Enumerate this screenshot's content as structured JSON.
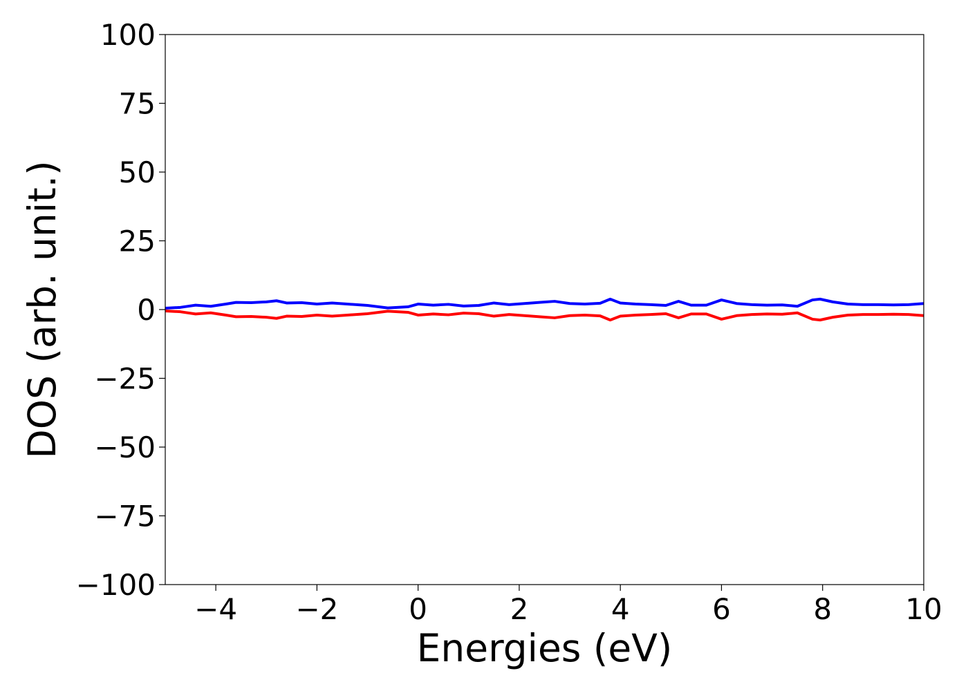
{
  "chart_data": {
    "type": "line",
    "title": "",
    "xlabel": "Energies (eV)",
    "ylabel": "DOS (arb. unit.)",
    "xlim": [
      -5,
      10
    ],
    "ylim": [
      -100,
      100
    ],
    "grid": false,
    "x_ticks": [
      -4,
      -2,
      0,
      2,
      4,
      6,
      8,
      10
    ],
    "x_tick_labels": [
      "−4",
      "−2",
      "0",
      "2",
      "4",
      "6",
      "8",
      "10"
    ],
    "y_ticks": [
      100,
      75,
      50,
      25,
      0,
      -25,
      -50,
      -75,
      -100
    ],
    "y_tick_labels": [
      "100",
      "75",
      "50",
      "25",
      "0",
      "−25",
      "−50",
      "−75",
      "−100"
    ],
    "series": [
      {
        "color": "#0000ff",
        "x": [
          -5,
          -4.7,
          -4.4,
          -4.1,
          -3.8,
          -3.6,
          -3.3,
          -3.0,
          -2.8,
          -2.6,
          -2.3,
          -2.0,
          -1.7,
          -1.4,
          -1.0,
          -0.6,
          -0.2,
          0.0,
          0.3,
          0.6,
          0.9,
          1.2,
          1.5,
          1.8,
          2.1,
          2.4,
          2.7,
          3.0,
          3.3,
          3.6,
          3.8,
          4.0,
          4.3,
          4.6,
          4.9,
          5.15,
          5.4,
          5.7,
          6.0,
          6.3,
          6.6,
          6.9,
          7.2,
          7.5,
          7.8,
          7.95,
          8.2,
          8.5,
          8.8,
          9.1,
          9.4,
          9.7,
          10.0
        ],
        "y": [
          0.5,
          0.8,
          1.6,
          1.2,
          2.0,
          2.6,
          2.5,
          2.8,
          3.2,
          2.4,
          2.5,
          2.0,
          2.4,
          2.0,
          1.5,
          0.6,
          1.0,
          2.0,
          1.6,
          1.9,
          1.3,
          1.5,
          2.4,
          1.8,
          2.2,
          2.6,
          3.0,
          2.2,
          2.0,
          2.3,
          3.8,
          2.4,
          2.0,
          1.8,
          1.5,
          3.0,
          1.6,
          1.6,
          3.5,
          2.2,
          1.8,
          1.6,
          1.7,
          1.2,
          3.5,
          3.8,
          2.8,
          2.0,
          1.8,
          1.8,
          1.7,
          1.8,
          2.2
        ]
      },
      {
        "color": "#ff0000",
        "x": [
          -5,
          -4.7,
          -4.4,
          -4.1,
          -3.8,
          -3.6,
          -3.3,
          -3.0,
          -2.8,
          -2.6,
          -2.3,
          -2.0,
          -1.7,
          -1.4,
          -1.0,
          -0.6,
          -0.2,
          0.0,
          0.3,
          0.6,
          0.9,
          1.2,
          1.5,
          1.8,
          2.1,
          2.4,
          2.7,
          3.0,
          3.3,
          3.6,
          3.8,
          4.0,
          4.3,
          4.6,
          4.9,
          5.15,
          5.4,
          5.7,
          6.0,
          6.3,
          6.6,
          6.9,
          7.2,
          7.5,
          7.8,
          7.95,
          8.2,
          8.5,
          8.8,
          9.1,
          9.4,
          9.7,
          10.0
        ],
        "y": [
          -0.5,
          -0.8,
          -1.6,
          -1.2,
          -2.0,
          -2.6,
          -2.5,
          -2.8,
          -3.2,
          -2.4,
          -2.5,
          -2.0,
          -2.4,
          -2.0,
          -1.5,
          -0.6,
          -1.0,
          -2.0,
          -1.6,
          -1.9,
          -1.3,
          -1.5,
          -2.4,
          -1.8,
          -2.2,
          -2.6,
          -3.0,
          -2.2,
          -2.0,
          -2.3,
          -3.8,
          -2.4,
          -2.0,
          -1.8,
          -1.5,
          -3.0,
          -1.6,
          -1.6,
          -3.5,
          -2.2,
          -1.8,
          -1.6,
          -1.7,
          -1.2,
          -3.5,
          -3.8,
          -2.8,
          -2.0,
          -1.8,
          -1.8,
          -1.7,
          -1.8,
          -2.2
        ]
      }
    ]
  }
}
